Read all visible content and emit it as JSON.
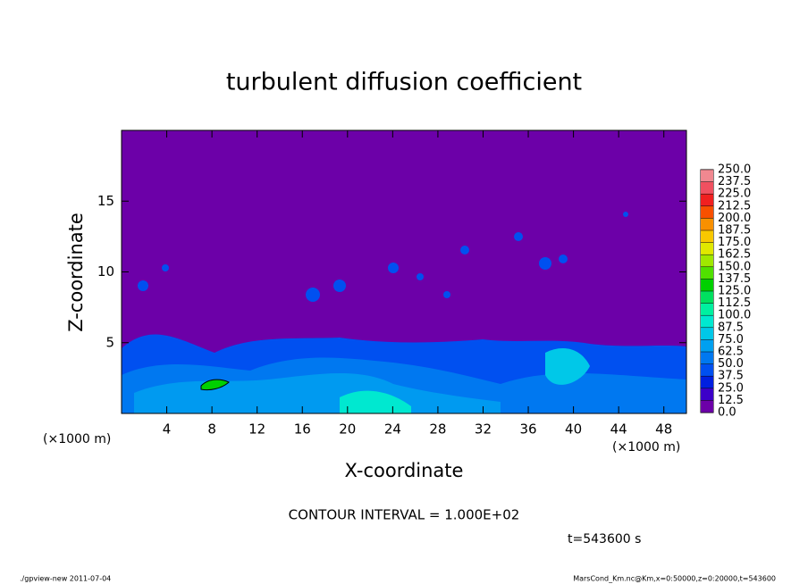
{
  "chart_data": {
    "type": "contour",
    "title": "turbulent diffusion coefficient",
    "xlabel": "X-coordinate",
    "ylabel": "Z-coordinate",
    "x_unit": "(×1000 m)",
    "xlim": [
      0,
      50
    ],
    "xticks": [
      4,
      8,
      12,
      16,
      20,
      24,
      28,
      32,
      36,
      40,
      44,
      48
    ],
    "ylim": [
      0,
      20
    ],
    "yticks": [
      5,
      10,
      15
    ],
    "colorbar": {
      "levels": [
        {
          "value": 0,
          "label": "0.0"
        },
        {
          "value": 12.5,
          "label": "12.5"
        },
        {
          "value": 25,
          "label": "25.0"
        },
        {
          "value": 37.5,
          "label": "37.5"
        },
        {
          "value": 50,
          "label": "50.0"
        },
        {
          "value": 62.5,
          "label": "62.5"
        },
        {
          "value": 75,
          "label": "75.0"
        },
        {
          "value": 87.5,
          "label": "87.5"
        },
        {
          "value": 100,
          "label": "100.0"
        },
        {
          "value": 112.5,
          "label": "112.5"
        },
        {
          "value": 125,
          "label": "125.0"
        },
        {
          "value": 137.5,
          "label": "137.5"
        },
        {
          "value": 150,
          "label": "150.0"
        },
        {
          "value": 162.5,
          "label": "162.5"
        },
        {
          "value": 175,
          "label": "175.0"
        },
        {
          "value": 187.5,
          "label": "187.5"
        },
        {
          "value": 200,
          "label": "200.0"
        },
        {
          "value": 212.5,
          "label": "212.5"
        },
        {
          "value": 225,
          "label": "225.0"
        },
        {
          "value": 237.5,
          "label": "237.5"
        },
        {
          "value": 250,
          "label": "250.0"
        }
      ],
      "colors": [
        "#6c00a8",
        "#3c00c8",
        "#0020e0",
        "#0050f0",
        "#0078f0",
        "#00a0f0",
        "#00c8e8",
        "#00e8d0",
        "#00f0a0",
        "#00e060",
        "#00d000",
        "#50e000",
        "#a0e800",
        "#e0e800",
        "#f8c800",
        "#f89000",
        "#f85000",
        "#f02020",
        "#f05060",
        "#f08890"
      ]
    },
    "contour_interval": "CONTOUR INTERVAL = 1.000E+02",
    "time": "t=543600 s",
    "footer_left": "./gpview-new  2011-07-04",
    "footer_right": "MarsCond_Km.nc@Km,x=0:50000,z=0:20000,t=543600"
  }
}
